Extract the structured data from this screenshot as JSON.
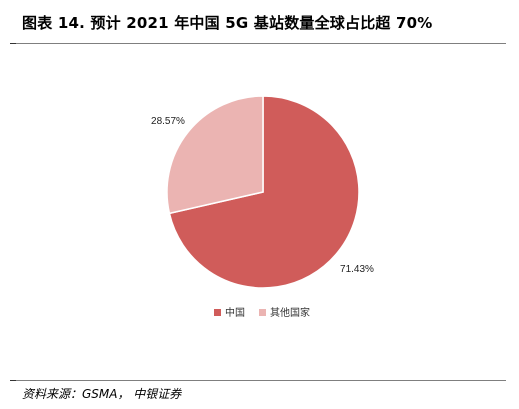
{
  "title": "图表 14. 预计 2021 年中国 5G 基站数量全球占比超 70%",
  "source": "资料来源：GSMA， 中银证券",
  "chart_data": {
    "type": "pie",
    "title": "",
    "slices": [
      {
        "name": "中国",
        "value": 71.43,
        "label": "71.43%",
        "color": "#d05c5a"
      },
      {
        "name": "其他国家",
        "value": 28.57,
        "label": "28.57%",
        "color": "#ebb4b2"
      }
    ],
    "legend": "bottom",
    "start_angle_deg": 0,
    "direction": "clockwise"
  }
}
